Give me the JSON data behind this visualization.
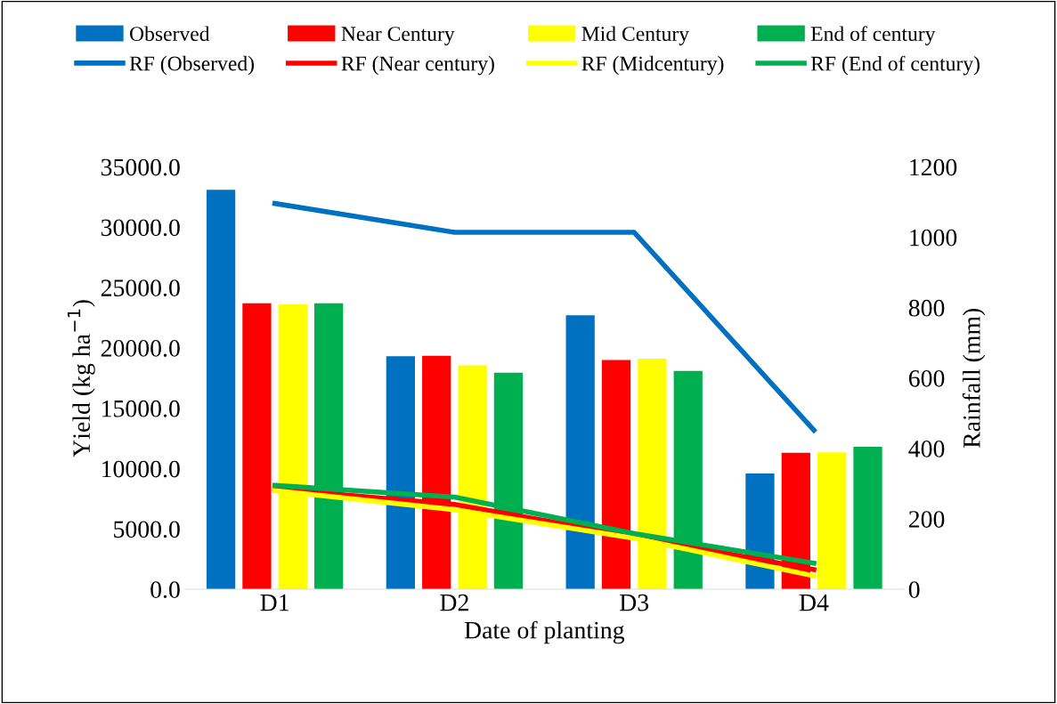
{
  "chart_data": {
    "type": "bar",
    "xlabel": "Date of planting",
    "ylabel": "Yield (kg ha$^{−1}$)",
    "y2label": "Rainfall (mm)",
    "categories": [
      "D1",
      "D2",
      "D3",
      "D4"
    ],
    "series": [
      {
        "name": "Observed",
        "color": "#0070c0",
        "values": [
          33100,
          19300,
          22700,
          9600
        ]
      },
      {
        "name": "Near Century",
        "color": "#ff0000",
        "values": [
          23700,
          19350,
          19000,
          11300
        ]
      },
      {
        "name": "Mid Century",
        "color": "#ffff00",
        "values": [
          23600,
          18550,
          19100,
          11350
        ]
      },
      {
        "name": "End of century",
        "color": "#00b050",
        "values": [
          23700,
          17950,
          18100,
          11800
        ]
      },
      {
        "name": "RF (Observed)",
        "type": "line",
        "axis": "y2",
        "color": "#0070c0",
        "values": [
          1096,
          1014,
          1014,
          452
        ]
      },
      {
        "name": "RF (Near century)",
        "type": "line",
        "axis": "y2",
        "color": "#ff0000",
        "values": [
          285,
          241,
          150,
          56
        ]
      },
      {
        "name": "RF (Midcentury)",
        "type": "line",
        "axis": "y2",
        "color": "#ffff00",
        "values": [
          280,
          226,
          145,
          38
        ]
      },
      {
        "name": "RF (End of century)",
        "type": "line",
        "axis": "y2",
        "color": "#00b050",
        "values": [
          295,
          262,
          158,
          74
        ]
      }
    ],
    "ylim": [
      0,
      35000
    ],
    "yticks": [
      {
        "value": 0,
        "label": "0.0"
      },
      {
        "value": 5000,
        "label": "5000.0"
      },
      {
        "value": 10000,
        "label": "10000.0"
      },
      {
        "value": 15000,
        "label": "15000.0"
      },
      {
        "value": 20000,
        "label": "20000.0"
      },
      {
        "value": 25000,
        "label": "25000.0"
      },
      {
        "value": 30000,
        "label": "30000.0"
      },
      {
        "value": 35000,
        "label": "35000.0"
      }
    ],
    "y2lim": [
      0,
      1200
    ],
    "y2ticks": [
      0,
      200,
      400,
      600,
      800,
      1000,
      1200
    ],
    "grid": false,
    "legend": "top",
    "marker": "none",
    "line_style": "solid"
  }
}
